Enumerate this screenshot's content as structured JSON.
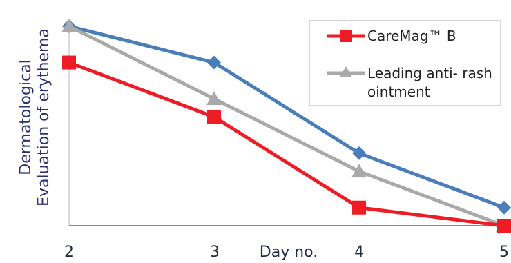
{
  "chart_data": {
    "type": "line",
    "title": "",
    "xlabel": "Day no.",
    "ylabel_lines": [
      "Dermatological",
      "Evaluation of erythema"
    ],
    "x": [
      2,
      3,
      4,
      5
    ],
    "xtick_labels": [
      "2",
      "3",
      "4",
      "5"
    ],
    "ylim": [
      0,
      11
    ],
    "ytick_labels": [],
    "grid": false,
    "legend_position": "top-right",
    "series": [
      {
        "name": "",
        "color": "#4a7ebb",
        "marker": "diamond",
        "values": [
          11,
          9,
          4,
          1
        ]
      },
      {
        "name": "CareMag™ B",
        "color": "#ee1c25",
        "marker": "square",
        "values": [
          9,
          6,
          1,
          0
        ]
      },
      {
        "name": "Leading anti- rash ointment",
        "legend_lines": [
          "Leading anti- rash",
          "ointment"
        ],
        "color": "#a9a9a9",
        "marker": "triangle",
        "values": [
          11,
          7,
          3,
          0
        ]
      }
    ]
  }
}
